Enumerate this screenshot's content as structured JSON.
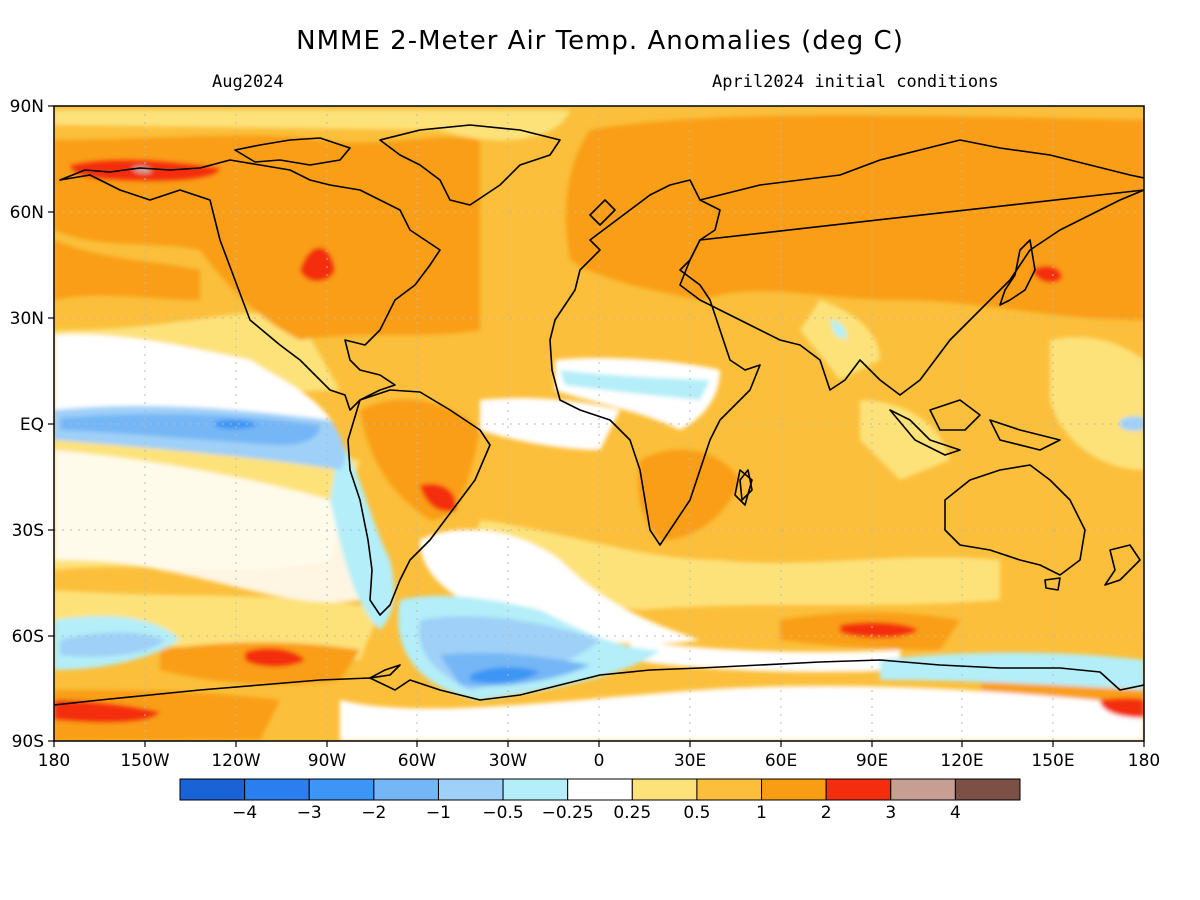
{
  "header": {
    "title": "NMME 2-Meter Air Temp. Anomalies (deg C)",
    "period": "Aug2024",
    "conditions": "April2024 initial conditions"
  },
  "axes": {
    "lat_labels": [
      "90N",
      "60N",
      "30N",
      "EQ",
      "30S",
      "60S",
      "90S"
    ],
    "lon_labels": [
      "180",
      "150W",
      "120W",
      "90W",
      "60W",
      "30W",
      "0",
      "30E",
      "60E",
      "90E",
      "120E",
      "150E",
      "180"
    ]
  },
  "colorbar": {
    "colors": [
      "#1a63d6",
      "#2a7ef0",
      "#3d95f5",
      "#75b6f6",
      "#9fd0f8",
      "#b4eef8",
      "#ffffff",
      "#fde27a",
      "#fbbf3b",
      "#f99e12",
      "#f42e0c",
      "#c79f92",
      "#7a5144"
    ],
    "labels": [
      "−4",
      "−3",
      "−2",
      "−1",
      "−0.5",
      "−0.25",
      "0.25",
      "0.5",
      "1",
      "2",
      "3",
      "4"
    ]
  }
}
